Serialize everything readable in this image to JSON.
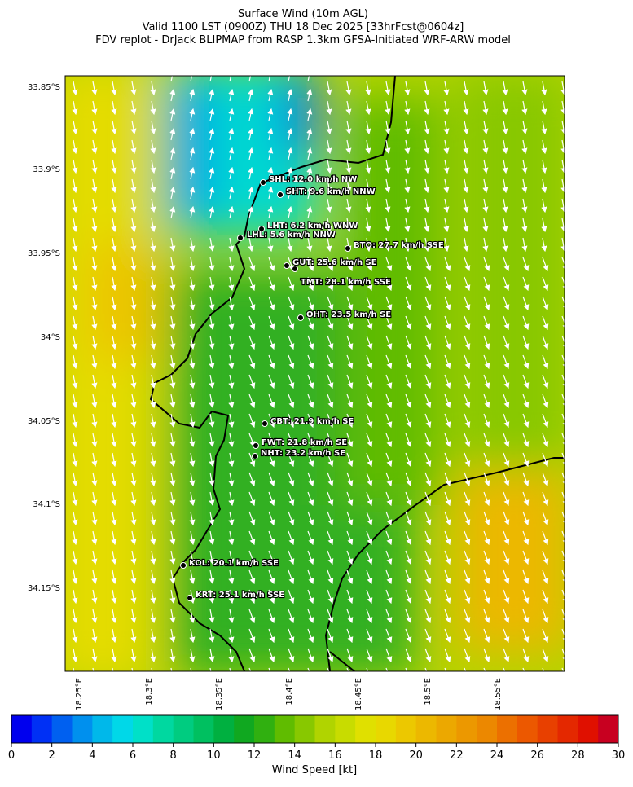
{
  "header": {
    "title_lines": [
      "Surface Wind (10m AGL)",
      "Valid 1100 LST (0900Z) THU 18 Dec 2025 [33hrFcst@0604z]",
      "FDV replot - DrJack BLIPMAP from RASP 1.3km GFSA-Initiated WRF-ARW model"
    ]
  },
  "map": {
    "lat_labels": [
      "33.85°S",
      "33.9°S",
      "33.95°S",
      "34°S",
      "34.05°S",
      "34.1°S",
      "34.15°S"
    ],
    "lon_labels": [
      "18.25°E",
      "18.3°E",
      "18.35°E",
      "18.4°E",
      "18.45°E",
      "18.5°E",
      "18.55°E"
    ],
    "stations": [
      "SHL: 12.0 km/h NW",
      "SHT: 9.6 km/h NNW",
      "LHT: 6.2 km/h WNW",
      "LHL: 5.6 km/h NNW",
      "BTO: 27.7 km/h SSE",
      "GUT: 25.6 km/h SE",
      "TMT: 28.1 km/h SSE",
      "OHT: 23.5 km/h SE",
      "CBT: 21.9 km/h SE",
      "FWT: 21.8 km/h SE",
      "NHT: 23.2 km/h SE",
      "KOL: 20.1 km/h SSE",
      "KRT: 25.1 km/h SSE"
    ]
  },
  "colorbar": {
    "label": "Wind Speed [kt]",
    "ticks": [
      0,
      2,
      4,
      6,
      8,
      10,
      12,
      14,
      16,
      18,
      20,
      22,
      24,
      26,
      28,
      30
    ],
    "colors": [
      "#0000ee",
      "#0030f5",
      "#0060f0",
      "#0090ee",
      "#00b8ea",
      "#00d8e8",
      "#00e0c8",
      "#00d8a0",
      "#00cc80",
      "#00c060",
      "#00b040",
      "#10a820",
      "#30b010",
      "#60bc00",
      "#88c800",
      "#b0d400",
      "#c8dc00",
      "#e0e000",
      "#e8d800",
      "#ecc800",
      "#ecb800",
      "#eca800",
      "#ec9800",
      "#ec8800",
      "#ec7000",
      "#ec5800",
      "#e84000",
      "#e42800",
      "#e01000",
      "#c80020"
    ]
  }
}
